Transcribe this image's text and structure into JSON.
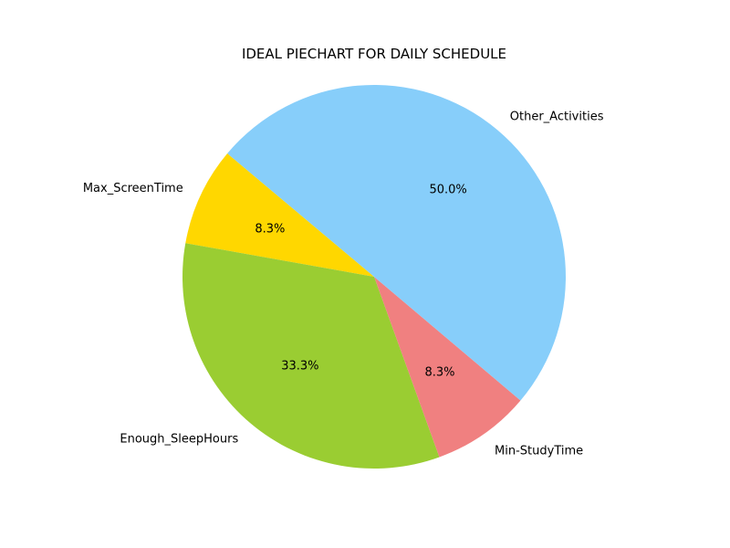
{
  "chart_data": {
    "type": "pie",
    "title": "IDEAL PIECHART FOR DAILY SCHEDULE",
    "labels": [
      "Max_ScreenTime",
      "Enough_SleepHours",
      "Min-StudyTime",
      "Other_Activities"
    ],
    "values": [
      8.3,
      33.3,
      8.3,
      50.0
    ],
    "percent_labels": [
      "8.3%",
      "33.3%",
      "8.3%",
      "50.0%"
    ],
    "colors": [
      "#ffd700",
      "#9acd32",
      "#f08080",
      "#87cefa"
    ],
    "start_angle_deg": 140,
    "direction": "counterclockwise"
  }
}
